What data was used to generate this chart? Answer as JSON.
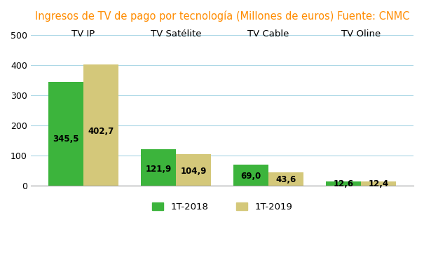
{
  "title": "Ingresos de TV de pago por tecnología (Millones de euros) Fuente: CNMC",
  "title_color": "#FF8C00",
  "categories": [
    "TV IP",
    "TV Satélite",
    "TV Cable",
    "TV Oline"
  ],
  "series_2018": [
    345.5,
    121.9,
    69.0,
    12.6
  ],
  "series_2019": [
    402.7,
    104.9,
    43.6,
    12.4
  ],
  "color_2018": "#3CB43C",
  "color_2019": "#D4C87A",
  "legend_2018": "1T-2018",
  "legend_2019": "1T-2019",
  "ylim": [
    0,
    520
  ],
  "yticks": [
    0,
    100,
    200,
    300,
    400,
    500
  ],
  "bar_width": 0.38,
  "background_color": "#FFFFFF",
  "grid_color": "#ADD8E6",
  "label_fontsize": 8.5,
  "cat_label_fontsize": 9.5,
  "title_fontsize": 10.5
}
